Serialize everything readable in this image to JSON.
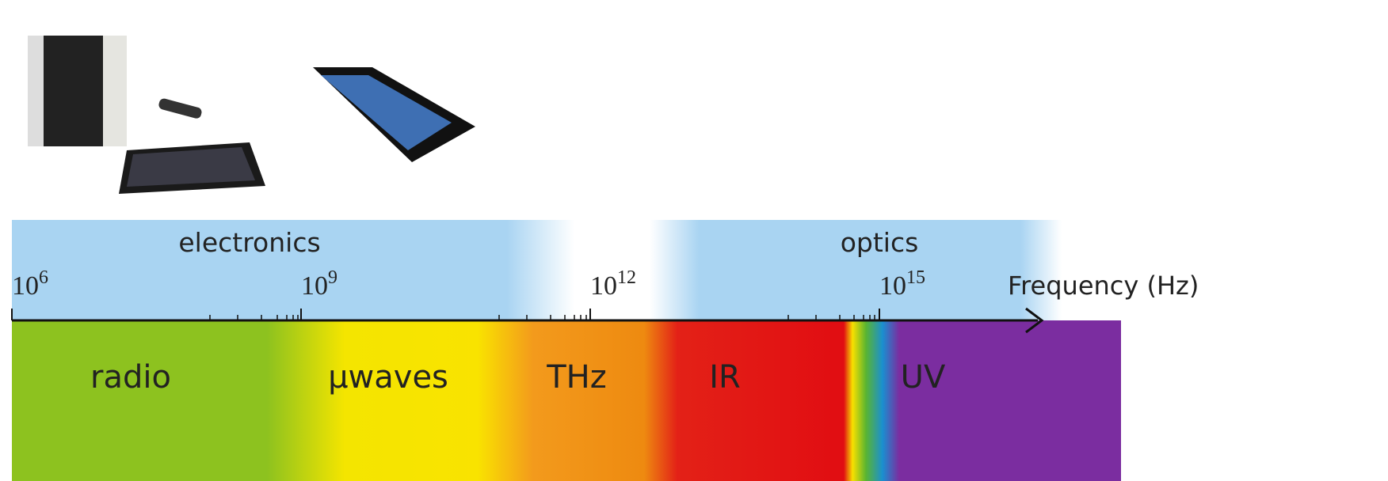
{
  "regions": [
    {
      "label": "electronics"
    },
    {
      "label": "optics"
    }
  ],
  "axis": {
    "label": "Frequency (Hz)",
    "ticks": [
      {
        "base": "10",
        "exponent": "6"
      },
      {
        "base": "10",
        "exponent": "9"
      },
      {
        "base": "10",
        "exponent": "12"
      },
      {
        "base": "10",
        "exponent": "15"
      }
    ]
  },
  "bands": [
    {
      "label": "radio"
    },
    {
      "label": "μwaves"
    },
    {
      "label": "THz"
    },
    {
      "label": "IR"
    },
    {
      "label": "UV"
    }
  ]
}
